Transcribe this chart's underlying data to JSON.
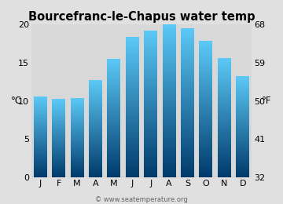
{
  "title": "Bourcefranc-le-Chapus water temp",
  "months": [
    "J",
    "F",
    "M",
    "A",
    "M",
    "J",
    "J",
    "A",
    "S",
    "O",
    "N",
    "D"
  ],
  "values_c": [
    10.6,
    10.2,
    10.4,
    12.7,
    15.5,
    18.3,
    19.2,
    20.0,
    19.5,
    17.8,
    15.6,
    13.2
  ],
  "ylim_c": [
    0,
    20
  ],
  "yticks_c": [
    0,
    5,
    10,
    15,
    20
  ],
  "yticks_f": [
    32,
    41,
    50,
    59,
    68
  ],
  "ylabel_left": "°C",
  "ylabel_right": "°F",
  "bar_color_top": "#5bc8f5",
  "bar_color_bottom": "#003a6b",
  "bg_color": "#e0e0e0",
  "plot_bg": "#d8d8d8",
  "watermark": "© www.seatemperature.org",
  "title_fontsize": 10.5,
  "tick_fontsize": 8,
  "label_fontsize": 8.5,
  "bar_width": 0.72
}
